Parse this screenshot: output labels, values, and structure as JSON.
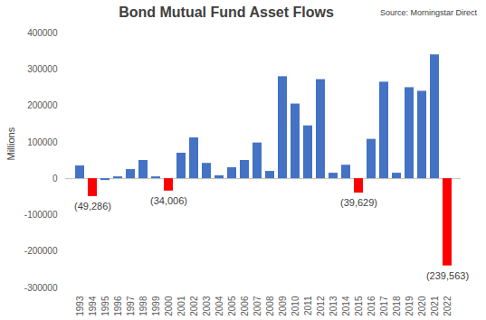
{
  "chart_data": {
    "type": "bar",
    "title": "Bond Mutual Fund Asset Flows",
    "subtitle": "Source: Morningstar Direct",
    "y_label": "Millions",
    "categories": [
      "1993",
      "1994",
      "1995",
      "1996",
      "1997",
      "1998",
      "1999",
      "2000",
      "2001",
      "2002",
      "2003",
      "2004",
      "2005",
      "2006",
      "2007",
      "2008",
      "2009",
      "2010",
      "2011",
      "2012",
      "2013",
      "2014",
      "2015",
      "2016",
      "2017",
      "2018",
      "2019",
      "2020",
      "2021",
      "2022"
    ],
    "values": [
      35000,
      -49286,
      -5000,
      5000,
      25000,
      50000,
      5000,
      -34006,
      70000,
      112000,
      42000,
      8000,
      30000,
      50000,
      98000,
      20000,
      280000,
      205000,
      145000,
      272000,
      15000,
      37000,
      -39629,
      108000,
      265000,
      15000,
      250000,
      240000,
      340000,
      -239563
    ],
    "value_labels": [
      null,
      "(49,286)",
      null,
      null,
      null,
      null,
      null,
      "(34,006)",
      null,
      null,
      null,
      null,
      null,
      null,
      null,
      null,
      null,
      null,
      null,
      null,
      null,
      null,
      "(39,629)",
      null,
      null,
      null,
      null,
      null,
      null,
      "(239,563)"
    ],
    "colors": [
      "#4472c4",
      "#ff0000",
      "#4472c4",
      "#4472c4",
      "#4472c4",
      "#4472c4",
      "#4472c4",
      "#ff0000",
      "#4472c4",
      "#4472c4",
      "#4472c4",
      "#4472c4",
      "#4472c4",
      "#4472c4",
      "#4472c4",
      "#4472c4",
      "#4472c4",
      "#4472c4",
      "#4472c4",
      "#4472c4",
      "#4472c4",
      "#4472c4",
      "#ff0000",
      "#4472c4",
      "#4472c4",
      "#4472c4",
      "#4472c4",
      "#4472c4",
      "#4472c4",
      "#ff0000"
    ],
    "ylim": [
      -300000,
      400000
    ],
    "yticks": [
      -300000,
      -200000,
      -100000,
      0,
      100000,
      200000,
      300000,
      400000
    ],
    "grid": false
  }
}
